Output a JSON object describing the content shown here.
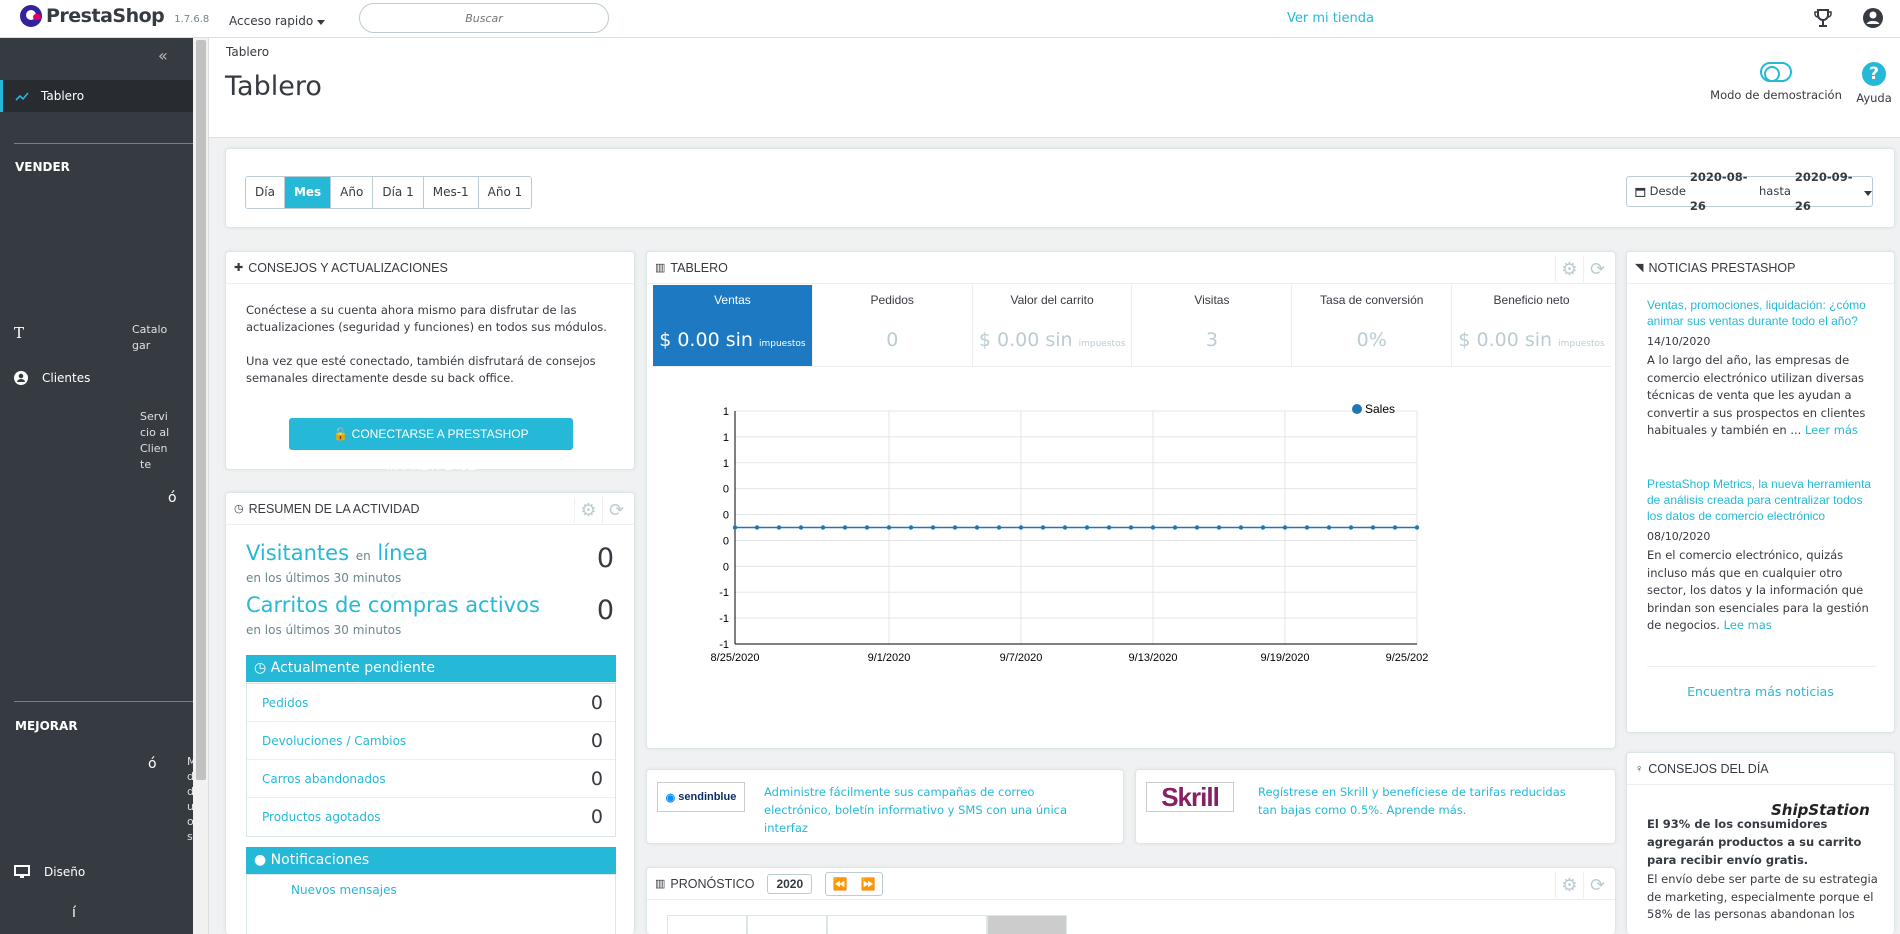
{
  "header": {
    "brand": "PrestaShop",
    "version": "1.7.6.8",
    "quick_access": "Acceso rapido",
    "search_placeholder": "Buscar",
    "view_shop": "Ver mi tienda"
  },
  "sidebar": {
    "collapse": "«",
    "active_item": "Tablero",
    "section_sell": "VENDER",
    "catalog_icon": "T",
    "catalog_text": "Catalo\ngar",
    "customers": "Clientes",
    "service_text": "Servi\ncio al\nClien\nte",
    "glyph_o1": "ó",
    "section_improve": "MEJORAR",
    "glyph_o2": "ó",
    "improve_text": "M\nd\nd\nu\no\ns",
    "design": "Diseño",
    "glyph_i": "í"
  },
  "page": {
    "breadcrumb": "Tablero",
    "title": "Tablero",
    "demo_mode": "Modo de demostración",
    "help": "Ayuda"
  },
  "filters": {
    "periods": [
      "Día",
      "Mes",
      "Año",
      "Día 1",
      "Mes-1",
      "Año 1"
    ],
    "active_period": "Mes",
    "date_prefix": "Desde",
    "date_from": "2020-08-26",
    "date_mid": "hasta",
    "date_to": "2020-09-26"
  },
  "consejos": {
    "title": "CONSEJOS Y ACTUALIZACIONES",
    "p1": "Conéctese a su cuenta ahora mismo para disfrutar de las actualizaciones (seguridad y funciones) en todos sus módulos.",
    "p2": "Una vez que esté conectado, también disfrutará de consejos semanales directamente desde su back office.",
    "button": "CONECTARSE A PRESTASHOP MARKETPLACE"
  },
  "resumen": {
    "title": "RESUMEN DE LA ACTIVIDAD",
    "visitors_a": "Visitantes",
    "visitors_b": "en",
    "visitors_c": "línea",
    "visitors_sub": "en los últimos 30 minutos",
    "visitors_val": "0",
    "carts": "Carritos de compras activos",
    "carts_sub": "en los últimos 30 minutos",
    "carts_val": "0",
    "pending_title": "Actualmente pendiente",
    "pending": [
      {
        "label": "Pedidos",
        "value": "0"
      },
      {
        "label": "Devoluciones / Cambios",
        "value": "0"
      },
      {
        "label": "Carros abandonados",
        "value": "0"
      },
      {
        "label": "Productos agotados",
        "value": "0"
      }
    ],
    "notif_title": "Notificaciones",
    "notif_item": "Nuevos mensajes"
  },
  "tablero": {
    "title": "TABLERO",
    "kpis": [
      {
        "label": "Ventas",
        "value": "$ 0.00 sin",
        "suffix": "impuestos"
      },
      {
        "label": "Pedidos",
        "value": "0",
        "suffix": ""
      },
      {
        "label": "Valor del carrito",
        "value": "$ 0.00 sin",
        "suffix": "impuestos"
      },
      {
        "label": "Visitas",
        "value": "3",
        "suffix": ""
      },
      {
        "label": "Tasa de conversión",
        "value": "0%",
        "suffix": ""
      },
      {
        "label": "Beneficio neto",
        "value": "$ 0.00 sin",
        "suffix": "impuestos"
      }
    ]
  },
  "chart_data": {
    "type": "line",
    "title": "",
    "xlabel": "",
    "ylabel": "",
    "y_tick_labels": [
      "1",
      "1",
      "1",
      "0",
      "0",
      "0",
      "0",
      "-1",
      "-1",
      "-1"
    ],
    "x_tick_labels": [
      "8/25/2020",
      "9/1/2020",
      "9/7/2020",
      "9/13/2020",
      "9/19/2020",
      "9/25/202"
    ],
    "ylim": [
      -1,
      1
    ],
    "grid": true,
    "legend": "top-right",
    "series": [
      {
        "name": "Sales",
        "color": "#1f77b4",
        "x": [
          "8/25/2020",
          "8/26/2020",
          "8/27/2020",
          "8/28/2020",
          "8/29/2020",
          "8/30/2020",
          "8/31/2020",
          "9/1/2020",
          "9/2/2020",
          "9/3/2020",
          "9/4/2020",
          "9/5/2020",
          "9/6/2020",
          "9/7/2020",
          "9/8/2020",
          "9/9/2020",
          "9/10/2020",
          "9/11/2020",
          "9/12/2020",
          "9/13/2020",
          "9/14/2020",
          "9/15/2020",
          "9/16/2020",
          "9/17/2020",
          "9/18/2020",
          "9/19/2020",
          "9/20/2020",
          "9/21/2020",
          "9/22/2020",
          "9/23/2020",
          "9/24/2020",
          "9/25/2020"
        ],
        "values": [
          0,
          0,
          0,
          0,
          0,
          0,
          0,
          0,
          0,
          0,
          0,
          0,
          0,
          0,
          0,
          0,
          0,
          0,
          0,
          0,
          0,
          0,
          0,
          0,
          0,
          0,
          0,
          0,
          0,
          0,
          0,
          0
        ]
      }
    ]
  },
  "promos": {
    "sendinblue_logo": "sendinblue",
    "sendinblue_text": "Administre fácilmente sus campañas de correo electrónico, boletín informativo y SMS con una única interfaz",
    "skrill_logo": "Skrill",
    "skrill_text": "Regístrese en Skrill y benefíciese de tarifas reducidas tan bajas como 0.5%. Aprende más."
  },
  "pronostico": {
    "title": "PRONÓSTICO",
    "year": "2020"
  },
  "noticias": {
    "title": "NOTICIAS PRESTASHOP",
    "items": [
      {
        "title": "Ventas, promociones, liquidación: ¿cómo animar sus ventas durante todo el año?",
        "date": "14/10/2020",
        "text": "A lo largo del año, las empresas de comercio electrónico utilizan diversas técnicas de venta que les ayudan a convertir a sus prospectos en clientes habituales y también en ...",
        "more": "Leer más"
      },
      {
        "title": "PrestaShop Metrics, la nueva herramienta de análisis creada para centralizar todos los datos de comercio electrónico",
        "date": "08/10/2020",
        "text": "En el comercio electrónico, quizás incluso más que en cualquier otro sector, los datos y la información que brindan son esenciales para la gestión de negocios.",
        "more": "Lee mas"
      }
    ],
    "more_news": "Encuentra más noticias"
  },
  "tips": {
    "title": "CONSEJOS DEL DÍA",
    "logo": "ShipStation",
    "strong": "El 93% de los consumidores agregarán productos a su carrito para recibir envío gratis.",
    "text": "El envío debe ser parte de su estrategia de marketing, especialmente porque el 58% de las personas abandonan los"
  },
  "colors": {
    "accent": "#25b9d7",
    "sidebar": "#363a41",
    "kpi_active": "#1d7ac2"
  }
}
